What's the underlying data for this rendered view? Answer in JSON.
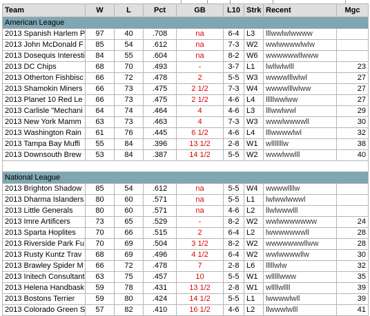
{
  "columns": {
    "team": "Team",
    "w": "W",
    "l": "L",
    "pct": "Pct",
    "gb": "GB",
    "l10": "L10",
    "strk": "Strk",
    "recent": "Recent",
    "mgc": "Mgc"
  },
  "leagues": [
    {
      "name": "American League",
      "teams": [
        {
          "team": "2013 Spanish Harlem Pi",
          "w": "97",
          "l": "40",
          "pct": ".708",
          "gb": "na",
          "l10": "6-4",
          "strk": "L3",
          "recent": "lllwwlwlwwww",
          "mgc": ""
        },
        {
          "team": "2013 John McDonald F",
          "w": "85",
          "l": "54",
          "pct": ".612",
          "gb": "na",
          "l10": "7-3",
          "strk": "W2",
          "recent": "wwlwwwwlwlw",
          "mgc": ""
        },
        {
          "team": "2013 Dosequis Interesti",
          "w": "84",
          "l": "55",
          "pct": ".604",
          "gb": "na",
          "l10": "8-2",
          "strk": "W6",
          "recent": "wwwwwwllwww",
          "mgc": ""
        },
        {
          "team": "2013 DC Chips",
          "w": "68",
          "l": "70",
          "pct": ".493",
          "gb": "-",
          "l10": "3-7",
          "strk": "L1",
          "recent": "lwllwlwlll",
          "mgc": "23"
        },
        {
          "team": "2013 Otherton Fishbisc",
          "w": "66",
          "l": "72",
          "pct": ".478",
          "gb": "2",
          "l10": "5-5",
          "strk": "W3",
          "recent": "wwwwlllwlwl",
          "mgc": "27"
        },
        {
          "team": "2013 Shamokin Miners",
          "w": "66",
          "l": "73",
          "pct": ".475",
          "gb": "2 1/2",
          "l10": "7-3",
          "strk": "W4",
          "recent": "wwwwlllwlww",
          "mgc": "27"
        },
        {
          "team": "2013 Planet 10 Red Le",
          "w": "66",
          "l": "73",
          "pct": ".475",
          "gb": "2 1/2",
          "l10": "4-6",
          "strk": "L4",
          "recent": "lllllwwlww",
          "mgc": "27"
        },
        {
          "team": "2013 Carlisle \"Mechani",
          "w": "64",
          "l": "74",
          "pct": ".464",
          "gb": "4",
          "l10": "4-6",
          "strk": "L3",
          "recent": "lllwwlwwl",
          "mgc": "29"
        },
        {
          "team": "2013 New York Mamm",
          "w": "63",
          "l": "73",
          "pct": ".463",
          "gb": "4",
          "l10": "7-3",
          "strk": "W3",
          "recent": "wwwlwwwwll",
          "mgc": "30"
        },
        {
          "team": "2013 Washington Rain",
          "w": "61",
          "l": "76",
          "pct": ".445",
          "gb": "6 1/2",
          "l10": "4-6",
          "strk": "L4",
          "recent": "lllwwwwlwl",
          "mgc": "32"
        },
        {
          "team": "2013 Tampa Bay Muffi",
          "w": "55",
          "l": "84",
          "pct": ".396",
          "gb": "13 1/2",
          "l10": "2-8",
          "strk": "W1",
          "recent": "wlllllllw",
          "mgc": "38"
        },
        {
          "team": "2013 Downsouth Brew",
          "w": "53",
          "l": "84",
          "pct": ".387",
          "gb": "14 1/2",
          "l10": "5-5",
          "strk": "W2",
          "recent": "wwwlwwlll",
          "mgc": "40"
        }
      ]
    },
    {
      "name": "National League",
      "teams": [
        {
          "team": "2013 Brighton Shadow",
          "w": "85",
          "l": "54",
          "pct": ".612",
          "gb": "na",
          "l10": "5-5",
          "strk": "W4",
          "recent": "wwwwllllw",
          "mgc": ""
        },
        {
          "team": "2013 Dharma Islanders",
          "w": "80",
          "l": "60",
          "pct": ".571",
          "gb": "na",
          "l10": "5-5",
          "strk": "L1",
          "recent": "lwlwwlwwwl",
          "mgc": ""
        },
        {
          "team": "2013 Little Generals",
          "w": "80",
          "l": "60",
          "pct": ".571",
          "gb": "na",
          "l10": "4-6",
          "strk": "L2",
          "recent": "llwlwwwlll",
          "mgc": ""
        },
        {
          "team": "2013 Imre Artificers",
          "w": "73",
          "l": "65",
          "pct": ".529",
          "gb": "-",
          "l10": "8-2",
          "strk": "W2",
          "recent": "wwlwwwwwww",
          "mgc": "24"
        },
        {
          "team": "2013 Sparta Hoplites",
          "w": "70",
          "l": "66",
          "pct": ".515",
          "gb": "2",
          "l10": "6-4",
          "strk": "L2",
          "recent": "lwwwwwwwll",
          "mgc": "28"
        },
        {
          "team": "2013 Riverside Park Fu",
          "w": "70",
          "l": "69",
          "pct": ".504",
          "gb": "3 1/2",
          "l10": "8-2",
          "strk": "W2",
          "recent": "wwwwwwwllww",
          "mgc": "28"
        },
        {
          "team": "2013 Rusty Kuntz Trav",
          "w": "68",
          "l": "69",
          "pct": ".496",
          "gb": "4 1/2",
          "l10": "6-4",
          "strk": "W2",
          "recent": "wwlwwwwllw",
          "mgc": "30"
        },
        {
          "team": "2013 Brawley Spider M",
          "w": "66",
          "l": "72",
          "pct": ".478",
          "gb": "7",
          "l10": "2-8",
          "strk": "L6",
          "recent": "lllllwlw",
          "mgc": "32"
        },
        {
          "team": "2013 Initech Consultant",
          "w": "63",
          "l": "75",
          "pct": ".457",
          "gb": "10",
          "l10": "5-5",
          "strk": "W1",
          "recent": "wlllllwww",
          "mgc": "35"
        },
        {
          "team": "2013 Helena Handbask",
          "w": "59",
          "l": "78",
          "pct": ".431",
          "gb": "13 1/2",
          "l10": "2-8",
          "strk": "W1",
          "recent": "wllllwllll",
          "mgc": "39"
        },
        {
          "team": "2013 Bostons Terrier",
          "w": "59",
          "l": "80",
          "pct": ".424",
          "gb": "14 1/2",
          "l10": "5-5",
          "strk": "L1",
          "recent": "lwwwwlwll",
          "mgc": "39"
        },
        {
          "team": "2013 Colorado Green S",
          "w": "57",
          "l": "82",
          "pct": ".410",
          "gb": "16 1/2",
          "l10": "4-6",
          "strk": "L2",
          "recent": "llwwwlwlll",
          "mgc": "41"
        }
      ]
    }
  ],
  "colors": {
    "header_bg": "#dedede",
    "league_bg": "#7ea6b3",
    "gb_text": "#e00000",
    "grid": "#b4b4b4"
  }
}
